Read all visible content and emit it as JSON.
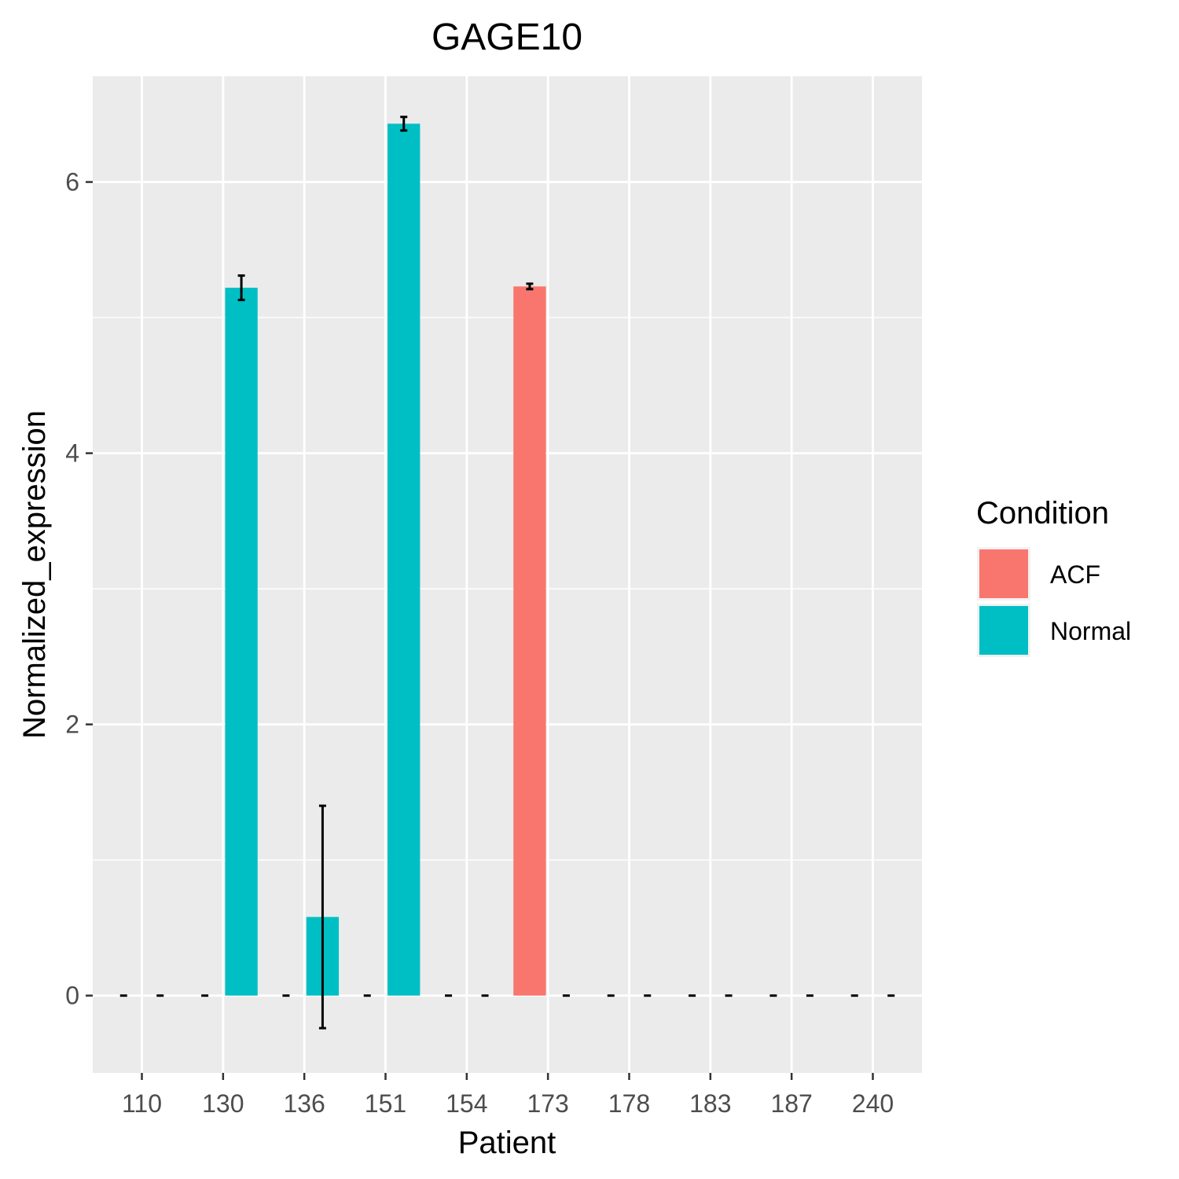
{
  "chart_data": {
    "type": "bar",
    "title": "GAGE10",
    "xlabel": "Patient",
    "ylabel": "Normalized_expression",
    "categories": [
      "110",
      "130",
      "136",
      "151",
      "154",
      "173",
      "178",
      "183",
      "187",
      "240"
    ],
    "series": [
      {
        "name": "ACF",
        "color": "#F8766D",
        "values": [
          0,
          0,
          0,
          0,
          0,
          5.23,
          0,
          0,
          0,
          0
        ],
        "error": [
          0,
          0,
          0,
          0,
          0,
          0.02,
          0,
          0,
          0,
          0
        ]
      },
      {
        "name": "Normal",
        "color": "#00BFC4",
        "values": [
          0,
          5.22,
          0.58,
          6.43,
          0,
          0,
          0,
          0,
          0,
          0
        ],
        "error": [
          0,
          0.09,
          0.82,
          0.05,
          0,
          0,
          0,
          0,
          0,
          0
        ]
      }
    ],
    "ylim": [
      -0.57,
      6.78
    ],
    "yticks": [
      0,
      2,
      4,
      6
    ],
    "grid": true,
    "legend": {
      "title": "Condition",
      "position": "right"
    },
    "colors": {
      "panel": "#EBEBEB",
      "grid": "#FFFFFF",
      "error_bar": "#000000"
    }
  }
}
